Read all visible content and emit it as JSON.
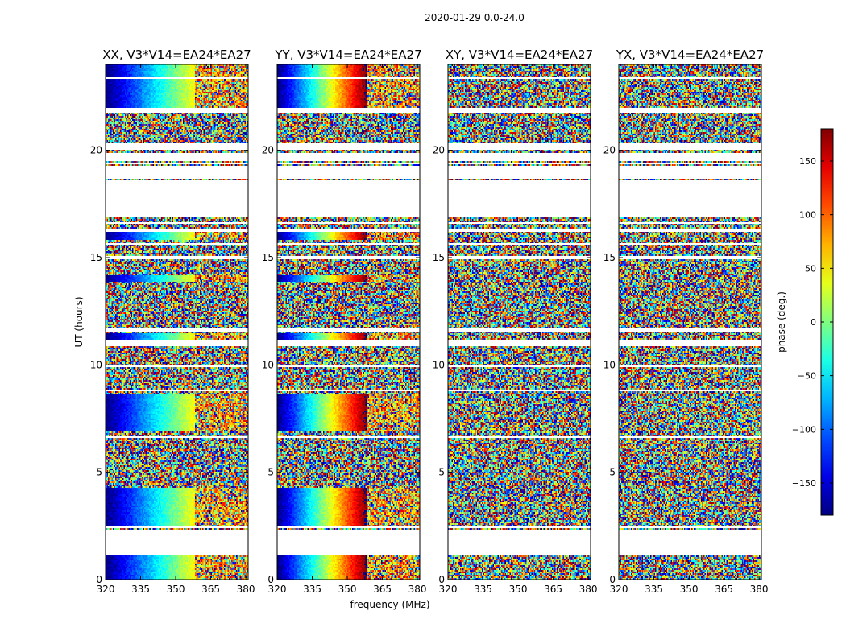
{
  "chart_data": {
    "type": "heatmap",
    "suptitle": "2020-01-29 0.0-24.0",
    "xlabel": "frequency (MHz)",
    "ylabel": "UT (hours)",
    "xlim": [
      320,
      381
    ],
    "ylim": [
      0,
      24
    ],
    "xticks": [
      320,
      335,
      350,
      365,
      380
    ],
    "yticks": [
      0,
      5,
      10,
      15,
      20
    ],
    "panels": [
      {
        "title": "XX, V3*V14=EA24*EA27",
        "pattern": "gradient",
        "phase_slope": 1.0
      },
      {
        "title": "YY, V3*V14=EA24*EA27",
        "pattern": "gradient",
        "phase_slope": 1.6
      },
      {
        "title": "XY, V3*V14=EA24*EA27",
        "pattern": "noise",
        "phase_slope": 0
      },
      {
        "title": "YX, V3*V14=EA24*EA27",
        "pattern": "noise",
        "phase_slope": 0
      }
    ],
    "colorbar": {
      "label": "phase (deg.)",
      "range": [
        -180,
        180
      ],
      "ticks": [
        150,
        100,
        50,
        0,
        -50,
        -100,
        -150
      ],
      "tick_labels": [
        "150",
        "100",
        "50",
        "0",
        "−50",
        "−100",
        "−150"
      ],
      "colormap": "jet"
    },
    "flagged_ut_ranges_hours": [
      [
        1.1,
        1.55
      ],
      [
        1.6,
        2.3
      ],
      [
        2.4,
        2.45
      ],
      [
        6.6,
        6.7
      ],
      [
        6.8,
        6.85
      ],
      [
        8.75,
        8.85
      ],
      [
        9.9,
        10.0
      ],
      [
        10.9,
        11.2
      ],
      [
        11.55,
        11.7
      ],
      [
        14.95,
        15.1
      ],
      [
        15.6,
        15.65
      ],
      [
        16.2,
        16.35
      ],
      [
        16.6,
        16.65
      ],
      [
        16.85,
        18.6
      ],
      [
        18.7,
        19.3
      ],
      [
        19.35,
        19.45
      ],
      [
        19.5,
        19.9
      ],
      [
        20.0,
        20.35
      ],
      [
        21.75,
        22.0
      ],
      [
        23.3,
        23.4
      ]
    ]
  }
}
